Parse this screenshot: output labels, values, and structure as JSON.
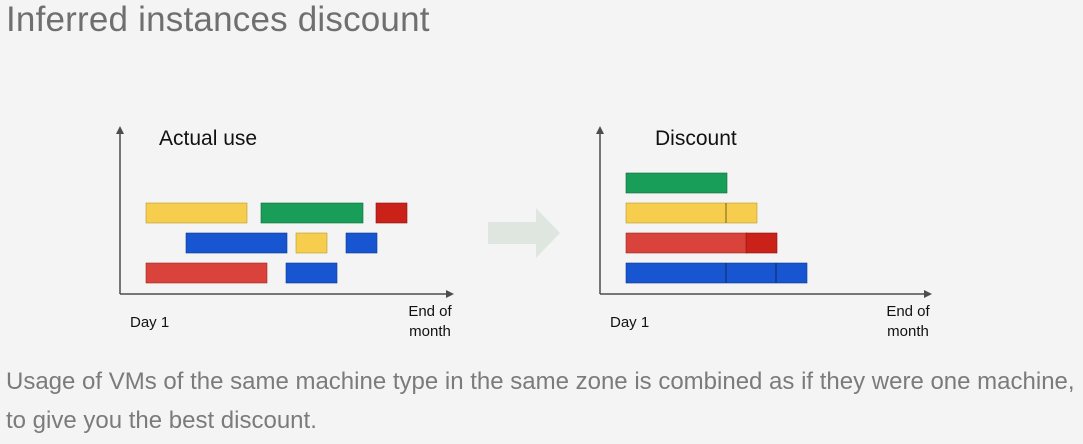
{
  "title": "Inferred instances discount",
  "caption": "Usage of VMs of the same machine type in the same zone is combined as if they were one machine, to give you the best discount.",
  "colors": {
    "yellow": "#f6cd4d",
    "green": "#189e59",
    "red": "#d9433b",
    "dark_red": "#ca2119",
    "blue": "#1755d1",
    "axis": "#4d4d4d",
    "arrow": "#dfe6df"
  },
  "left_panel": {
    "heading": "Actual use",
    "x_start_label": "Day 1",
    "x_end_label_line1": "End of",
    "x_end_label_line2": "month"
  },
  "right_panel": {
    "heading": "Discount",
    "x_start_label": "Day 1",
    "x_end_label_line1": "End of",
    "x_end_label_line2": "month"
  }
}
